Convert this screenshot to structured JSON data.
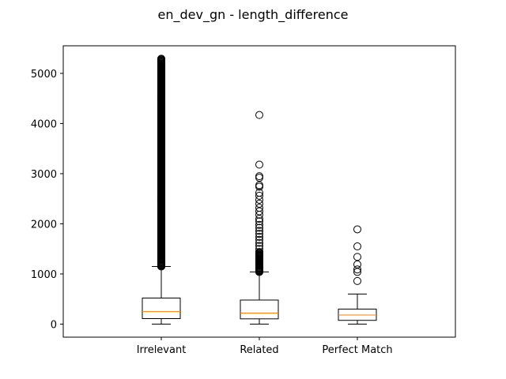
{
  "chart_data": {
    "type": "box",
    "title": "en_dev_gn - length_difference",
    "xlabel": "",
    "ylabel": "",
    "categories": [
      "Irrelevant",
      "Related",
      "Perfect Match"
    ],
    "ylim": [
      -260,
      5550
    ],
    "yticks": [
      0,
      1000,
      2000,
      3000,
      4000,
      5000
    ],
    "grid": false,
    "boxes": [
      {
        "name": "Irrelevant",
        "whisker_low": 0,
        "q1": 110,
        "median": 250,
        "q3": 520,
        "whisker_high": 1150,
        "fliers_dense_range": [
          1150,
          5300
        ],
        "fliers": []
      },
      {
        "name": "Related",
        "whisker_low": 0,
        "q1": 105,
        "median": 220,
        "q3": 480,
        "whisker_high": 1040,
        "fliers_dense_range": [
          1040,
          1450
        ],
        "fliers": [
          1500,
          1560,
          1620,
          1680,
          1740,
          1800,
          1860,
          1920,
          1980,
          2050,
          2100,
          2180,
          2250,
          2320,
          2400,
          2480,
          2560,
          2620,
          2740,
          2770,
          2920,
          2950,
          3180,
          4170
        ]
      },
      {
        "name": "Perfect Match",
        "whisker_low": 0,
        "q1": 75,
        "median": 180,
        "q3": 300,
        "whisker_high": 600,
        "fliers_dense_range": null,
        "fliers": [
          860,
          1040,
          1090,
          1190,
          1340,
          1550,
          1890
        ]
      }
    ],
    "colors": {
      "box": "#000000",
      "median": "#ff7f0e",
      "flier": "#000000"
    }
  }
}
